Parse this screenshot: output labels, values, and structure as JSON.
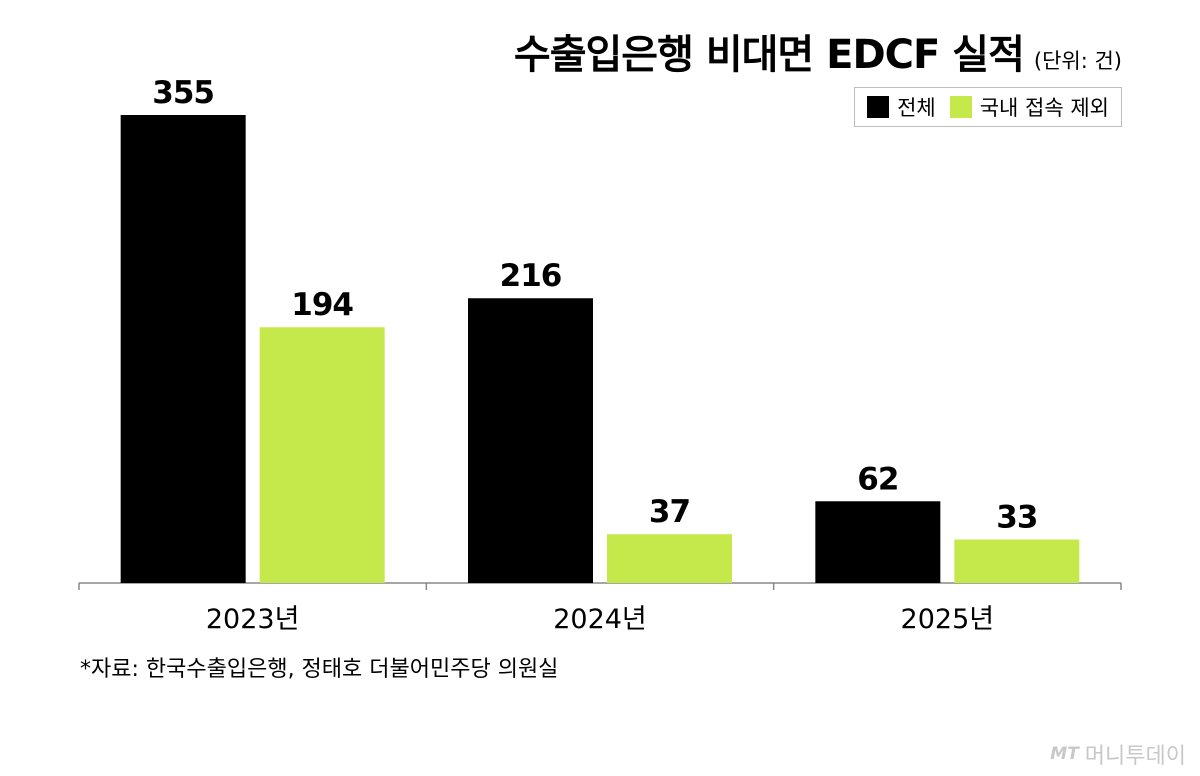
{
  "chart_data": {
    "type": "bar",
    "title": "수출입은행 비대면 EDCF 실적",
    "unit": "(단위: 건)",
    "categories": [
      "2023년",
      "2024년",
      "2025년"
    ],
    "series": [
      {
        "name": "전체",
        "color": "#000000",
        "values": [
          355,
          216,
          62
        ]
      },
      {
        "name": "국내 접속 제외",
        "color": "#c5e84a",
        "values": [
          194,
          37,
          33
        ]
      }
    ],
    "xlabel": "",
    "ylabel": "",
    "ylim": [
      0,
      355
    ],
    "grid": false,
    "legend_position": "top-right"
  },
  "source": "*자료: 한국수출입은행, 정태호 더불어민주당 의원실",
  "logo": {
    "mark": "MT",
    "text": "머니투데이"
  }
}
